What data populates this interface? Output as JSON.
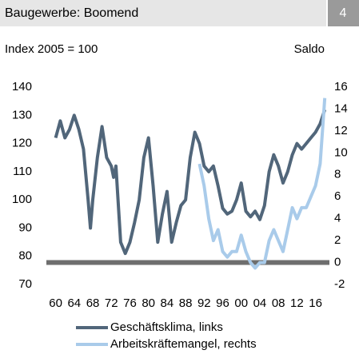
{
  "chart_data": {
    "type": "line",
    "title": "Baugewerbe: Boomend",
    "number": "4",
    "ylabel": "Index 2005 = 100",
    "y2label": "Saldo",
    "xlim": [
      1958,
      2019
    ],
    "xticks": [
      {
        "value": 1960,
        "label": "60"
      },
      {
        "value": 1964,
        "label": "64"
      },
      {
        "value": 1968,
        "label": "68"
      },
      {
        "value": 1972,
        "label": "72"
      },
      {
        "value": 1976,
        "label": "76"
      },
      {
        "value": 1980,
        "label": "80"
      },
      {
        "value": 1984,
        "label": "84"
      },
      {
        "value": 1988,
        "label": "88"
      },
      {
        "value": 1992,
        "label": "92"
      },
      {
        "value": 1996,
        "label": "96"
      },
      {
        "value": 2000,
        "label": "00"
      },
      {
        "value": 2004,
        "label": "04"
      },
      {
        "value": 2008,
        "label": "08"
      },
      {
        "value": 2012,
        "label": "12"
      },
      {
        "value": 2016,
        "label": "16"
      }
    ],
    "ylim": [
      70,
      140
    ],
    "yticks": [
      70,
      80,
      90,
      100,
      110,
      120,
      130,
      140
    ],
    "y2lim": [
      -2,
      16
    ],
    "y2ticks": [
      -2,
      0,
      2,
      4,
      6,
      8,
      10,
      12,
      14,
      16
    ],
    "series": [
      {
        "name": "Geschäftsklima, links",
        "color": "#51667a",
        "x": [
          1960,
          1961,
          1962,
          1963,
          1964,
          1965,
          1966,
          1967,
          1967.5,
          1968,
          1969,
          1970,
          1971,
          1972,
          1972.5,
          1973,
          1974,
          1975,
          1976,
          1977,
          1978,
          1979,
          1980,
          1981,
          1982,
          1983,
          1984,
          1985,
          1986,
          1987,
          1988,
          1989,
          1990,
          1991,
          1992,
          1993,
          1994,
          1995,
          1996,
          1997,
          1998,
          1999,
          2000,
          2001,
          2002,
          2003,
          2004,
          2005,
          2006,
          2007,
          2008,
          2009,
          2010,
          2011,
          2012,
          2013,
          2014,
          2015,
          2016,
          2017,
          2018
        ],
        "values": [
          122,
          128,
          122,
          125,
          130,
          125,
          118,
          100,
          90,
          100,
          115,
          126,
          115,
          112,
          108,
          112,
          85,
          81,
          85,
          92,
          100,
          115,
          122,
          105,
          85,
          95,
          103,
          85,
          92,
          98,
          100,
          115,
          124,
          120,
          112,
          110,
          112,
          105,
          97,
          95,
          96,
          100,
          106,
          96,
          94,
          96,
          93,
          98,
          110,
          116,
          112,
          106,
          110,
          116,
          120,
          118,
          120,
          122,
          124,
          127,
          132
        ]
      },
      {
        "name": "Arbeitskräftemangel, rechts",
        "color": "#a9cbea",
        "axis": "y2",
        "x": [
          1991,
          1992,
          1993,
          1994,
          1995,
          1996,
          1997,
          1998,
          1999,
          2000,
          2001,
          2002,
          2003,
          2004,
          2005,
          2006,
          2007,
          2008,
          2009,
          2010,
          2011,
          2012,
          2013,
          2014,
          2015,
          2016,
          2017,
          2018
        ],
        "values": [
          9,
          7,
          4,
          2,
          3,
          1,
          0.5,
          1,
          1,
          2.5,
          1,
          0,
          -0.5,
          0,
          0,
          2,
          3,
          2,
          1,
          3,
          5,
          4,
          5,
          5,
          6,
          7,
          9,
          15
        ]
      }
    ]
  }
}
